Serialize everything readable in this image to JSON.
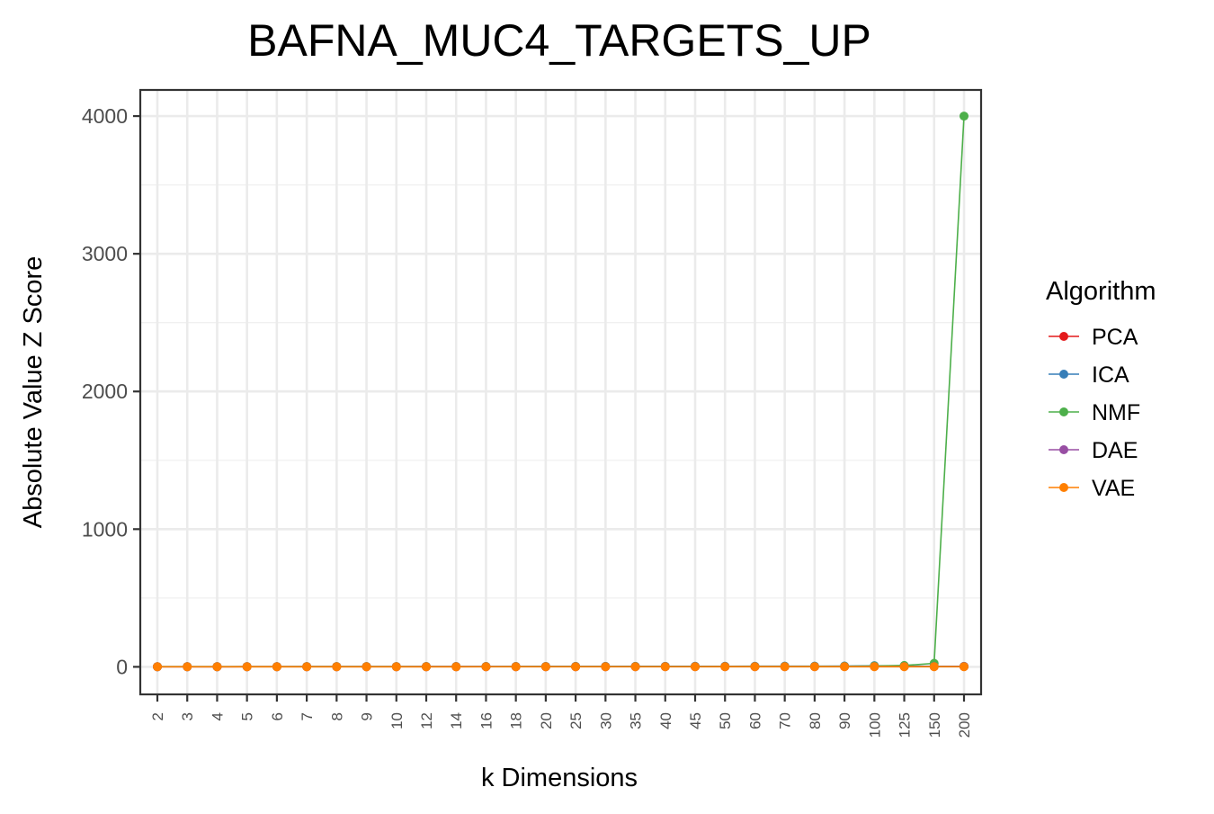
{
  "chart_data": {
    "type": "line",
    "title": "BAFNA_MUC4_TARGETS_UP",
    "xlabel": "k Dimensions",
    "ylabel": "Absolute Value Z Score",
    "categories": [
      "2",
      "3",
      "4",
      "5",
      "6",
      "7",
      "8",
      "9",
      "10",
      "12",
      "14",
      "16",
      "18",
      "20",
      "25",
      "30",
      "35",
      "40",
      "45",
      "50",
      "60",
      "70",
      "80",
      "90",
      "100",
      "125",
      "150",
      "200"
    ],
    "ylim": [
      -200,
      4190
    ],
    "yticks": [
      0,
      1000,
      2000,
      3000,
      4000
    ],
    "ytick_labels": [
      "0",
      "1000",
      "2000",
      "3000",
      "4000"
    ],
    "grid": true,
    "legend_title": "Algorithm",
    "legend_position": "right",
    "series": [
      {
        "name": "PCA",
        "color": "#E41A1C",
        "values": [
          0.8,
          0.9,
          0.9,
          1.0,
          1.0,
          1.1,
          1.1,
          1.1,
          1.2,
          1.2,
          1.3,
          1.3,
          1.4,
          1.4,
          1.5,
          1.5,
          1.6,
          1.7,
          1.8,
          1.9,
          2.0,
          2.1,
          2.2,
          2.3,
          2.4,
          2.5,
          2.6,
          2.7
        ]
      },
      {
        "name": "ICA",
        "color": "#377EB8",
        "values": [
          1.2,
          1.4,
          1.5,
          1.6,
          1.7,
          1.8,
          1.9,
          2.0,
          2.1,
          2.2,
          2.3,
          2.4,
          2.6,
          2.8,
          3.0,
          3.2,
          3.4,
          3.6,
          3.8,
          4.0,
          4.3,
          4.6,
          5.0,
          5.5,
          8.0,
          6.0,
          4.0,
          3.5
        ]
      },
      {
        "name": "NMF",
        "color": "#4DAF4A",
        "values": [
          1.0,
          1.1,
          1.1,
          1.2,
          1.2,
          1.3,
          1.3,
          1.4,
          1.4,
          1.5,
          1.6,
          1.7,
          1.8,
          1.9,
          2.0,
          2.1,
          2.2,
          2.3,
          2.4,
          2.5,
          2.7,
          3.0,
          3.5,
          4.0,
          6.0,
          10.0,
          25.0,
          4000.0
        ]
      },
      {
        "name": "DAE",
        "color": "#984EA3",
        "values": [
          0.6,
          0.7,
          0.7,
          0.8,
          0.8,
          0.8,
          0.9,
          0.9,
          0.9,
          1.0,
          1.0,
          1.0,
          1.1,
          1.1,
          1.2,
          1.2,
          1.2,
          1.3,
          1.3,
          1.4,
          1.4,
          1.5,
          1.5,
          1.6,
          1.6,
          1.7,
          1.7,
          1.8
        ]
      },
      {
        "name": "VAE",
        "color": "#FF7F00",
        "values": [
          0.5,
          0.5,
          0.5,
          0.6,
          0.6,
          0.6,
          0.6,
          0.7,
          0.7,
          0.7,
          0.7,
          0.8,
          0.8,
          0.8,
          0.8,
          0.9,
          0.9,
          0.9,
          0.9,
          1.0,
          1.0,
          1.0,
          1.1,
          1.1,
          1.1,
          1.2,
          1.2,
          1.2
        ]
      }
    ]
  }
}
